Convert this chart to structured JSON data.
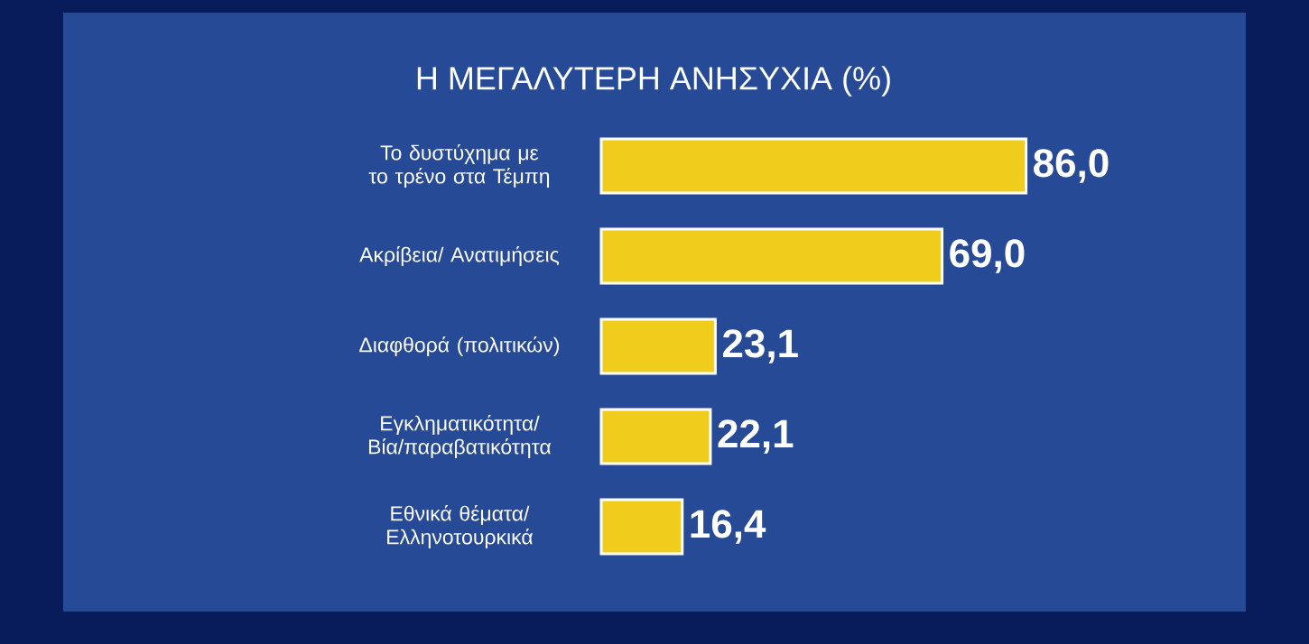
{
  "chart_data": {
    "type": "bar",
    "orientation": "horizontal",
    "title": "Η ΜΕΓΑΛΥΤΕΡΗ ΑΝΗΣΥΧΙΑ (%)",
    "categories": [
      "Το δυστύχημα με το τρένο στα Τέμπη",
      "Ακρίβεια/ Ανατιμήσεις",
      "Διαφθορά (πολιτικών)",
      "Εγκληματικότητα/ Βία/παραβατικότητα",
      "Εθνικά θέματα/ Ελληνοτουρκικά"
    ],
    "values": [
      86.0,
      69.0,
      23.1,
      22.1,
      16.4
    ],
    "value_labels": [
      "86,0",
      "69,0",
      "23,1",
      "22,1",
      "16,4"
    ],
    "color": "#f0cc1c"
  }
}
